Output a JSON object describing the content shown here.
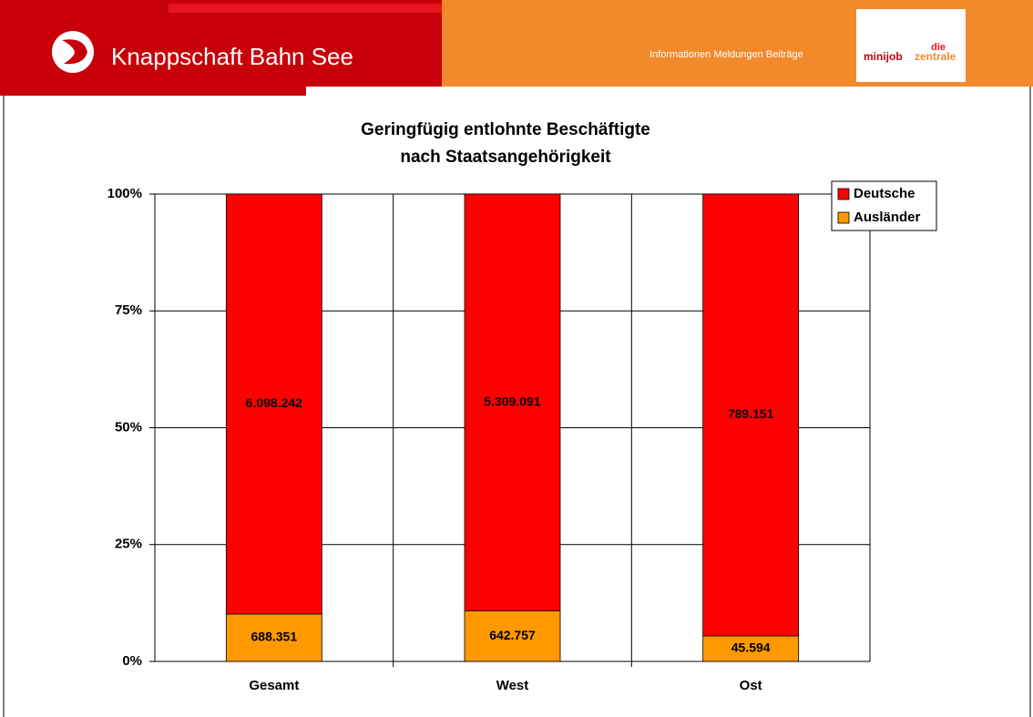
{
  "header": {
    "brand": "Knappschaft Bahn See",
    "tagline": "Informationen Meldungen Beiträge",
    "logo_top": "die",
    "logo_left": "minijob",
    "logo_right": "zentrale"
  },
  "chart_data": {
    "type": "bar",
    "stacking": "percent",
    "title": "Geringfügig entlohnte Beschäftigte",
    "subtitle": "nach Staatsangehörigkeit",
    "categories": [
      "Gesamt",
      "West",
      "Ost"
    ],
    "series": [
      {
        "name": "Deutsche",
        "color": "#ff0000",
        "values": [
          6098242,
          5309091,
          789151
        ],
        "value_labels": [
          "6.098.242",
          "5.309.091",
          "789.151"
        ]
      },
      {
        "name": "Ausländer",
        "color": "#ff9900",
        "values": [
          688351,
          642757,
          45594
        ],
        "value_labels": [
          "688.351",
          "642.757",
          "45.594"
        ]
      }
    ],
    "ylim": [
      0,
      100
    ],
    "yticks": [
      {
        "value": 0,
        "label": "0%"
      },
      {
        "value": 25,
        "label": "25%"
      },
      {
        "value": 50,
        "label": "50%"
      },
      {
        "value": 75,
        "label": "75%"
      },
      {
        "value": 100,
        "label": "100%"
      }
    ],
    "grid": true,
    "legend": "top-right"
  }
}
